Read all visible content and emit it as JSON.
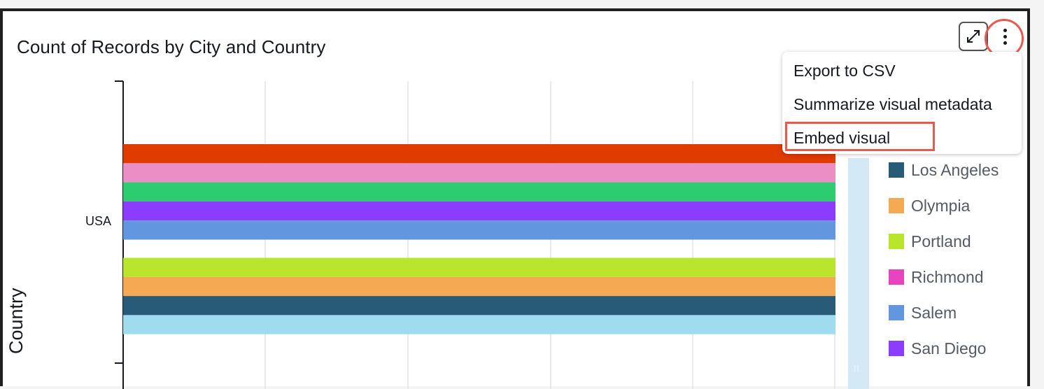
{
  "visual": {
    "title": "Count of Records by City and Country",
    "expand_icon": "expand-arrows-icon",
    "more_icon": "more-vertical-icon"
  },
  "menu": {
    "items": [
      "Export to CSV",
      "Summarize visual metadata",
      "Embed visual"
    ],
    "highlighted": "Embed visual"
  },
  "chart_data": {
    "type": "bar",
    "orientation": "horizontal",
    "title": "Count of Records by City and Country",
    "ylabel": "Country",
    "categories": [
      "USA"
    ],
    "series": [
      {
        "name": "",
        "color": "#e03b00",
        "values": [
          1
        ]
      },
      {
        "name": "",
        "color": "#ec8ec6",
        "values": [
          1
        ]
      },
      {
        "name": "",
        "color": "#2ecc71",
        "values": [
          1
        ]
      },
      {
        "name": "San Diego",
        "color": "#8b3cff",
        "values": [
          1
        ]
      },
      {
        "name": "Salem",
        "color": "#6297e0",
        "values": [
          1
        ]
      },
      {
        "name": "",
        "color": "#b9e52d",
        "values": [
          1
        ]
      },
      {
        "name": "Olympia",
        "color": "#f5a953",
        "values": [
          1
        ]
      },
      {
        "name": "Los Angeles",
        "color": "#285b78",
        "values": [
          1
        ]
      },
      {
        "name": "",
        "color": "#9fdcef",
        "values": [
          1
        ]
      }
    ],
    "legend": [
      {
        "label": "Los Angeles",
        "color": "#285b78"
      },
      {
        "label": "Olympia",
        "color": "#f5a953"
      },
      {
        "label": "Portland",
        "color": "#b9e52d"
      },
      {
        "label": "Richmond",
        "color": "#e844c0"
      },
      {
        "label": "Salem",
        "color": "#6297e0"
      },
      {
        "label": "San Diego",
        "color": "#8b3cff"
      }
    ],
    "legend_position": "right",
    "grid": true
  }
}
